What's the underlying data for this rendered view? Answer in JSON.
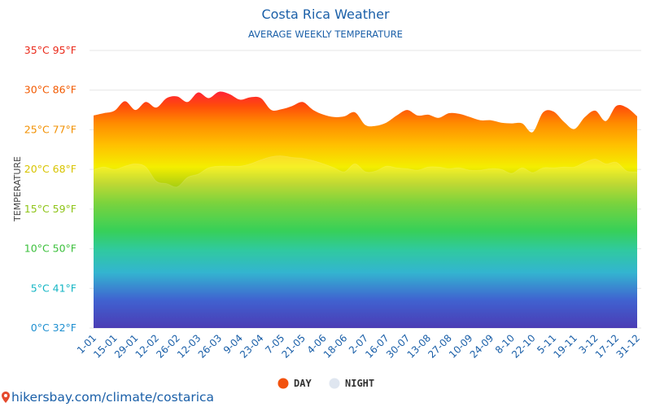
{
  "chart_data": {
    "type": "area",
    "title": "Costa Rica Weather",
    "subtitle": "AVERAGE WEEKLY TEMPERATURE",
    "ylabel": "TEMPERATURE",
    "xlabel": "",
    "ylim": [
      0,
      35
    ],
    "y_ticks": [
      {
        "value": 0,
        "label": "0°C 32°F",
        "color": "#1e8fd0"
      },
      {
        "value": 5,
        "label": "5°C 41°F",
        "color": "#14b6c4"
      },
      {
        "value": 10,
        "label": "10°C 50°F",
        "color": "#3cc03c"
      },
      {
        "value": 15,
        "label": "15°C 59°F",
        "color": "#8ec418"
      },
      {
        "value": 20,
        "label": "20°C 68°F",
        "color": "#d8c400"
      },
      {
        "value": 25,
        "label": "25°C 77°F",
        "color": "#f29000"
      },
      {
        "value": 30,
        "label": "30°C 86°F",
        "color": "#f25a00"
      },
      {
        "value": 35,
        "label": "35°C 95°F",
        "color": "#ea2a1a"
      }
    ],
    "x_tick_labels": [
      "1-01",
      "15-01",
      "29-01",
      "12-02",
      "26-02",
      "12-03",
      "26-03",
      "9-04",
      "23-04",
      "7-05",
      "21-05",
      "4-06",
      "18-06",
      "2-07",
      "16-07",
      "30-07",
      "13-08",
      "27-08",
      "10-09",
      "24-09",
      "8-10",
      "22-10",
      "5-11",
      "19-11",
      "3-12",
      "17-12",
      "31-12"
    ],
    "series": [
      {
        "name": "DAY",
        "color": "#f2520e",
        "values": [
          26.8,
          27.1,
          27.4,
          28.6,
          27.5,
          28.5,
          27.8,
          29.0,
          29.2,
          28.5,
          29.7,
          29.0,
          29.8,
          29.5,
          28.8,
          29.1,
          29.0,
          27.5,
          27.6,
          28.0,
          28.5,
          27.5,
          26.9,
          26.6,
          26.7,
          27.2,
          25.6,
          25.5,
          25.9,
          26.8,
          27.5,
          26.8,
          26.9,
          26.5,
          27.1,
          27.0,
          26.6,
          26.2,
          26.2,
          25.9,
          25.8,
          25.8,
          24.7,
          27.2,
          27.3,
          26.0,
          25.1,
          26.6,
          27.4,
          26.1,
          28.0,
          27.8,
          26.7
        ]
      },
      {
        "name": "NIGHT",
        "color": "#dfe6f0",
        "values": [
          20.0,
          20.3,
          20.0,
          20.4,
          20.7,
          20.3,
          18.5,
          18.2,
          17.8,
          19.0,
          19.4,
          20.2,
          20.4,
          20.4,
          20.4,
          20.7,
          21.2,
          21.6,
          21.7,
          21.5,
          21.4,
          21.1,
          20.7,
          20.2,
          19.7,
          20.7,
          19.7,
          19.8,
          20.4,
          20.2,
          20.1,
          19.9,
          20.3,
          20.3,
          20.1,
          20.2,
          19.9,
          19.9,
          20.1,
          20.0,
          19.5,
          20.2,
          19.6,
          20.2,
          20.2,
          20.3,
          20.3,
          20.9,
          21.3,
          20.7,
          20.9,
          19.8,
          19.7
        ]
      }
    ],
    "legend_position": "bottom-center",
    "grid": true
  },
  "source": {
    "text": "hikersbay.com/climate/costarica",
    "icon": "map-pin-icon",
    "icon_color": "#e54a2e"
  }
}
